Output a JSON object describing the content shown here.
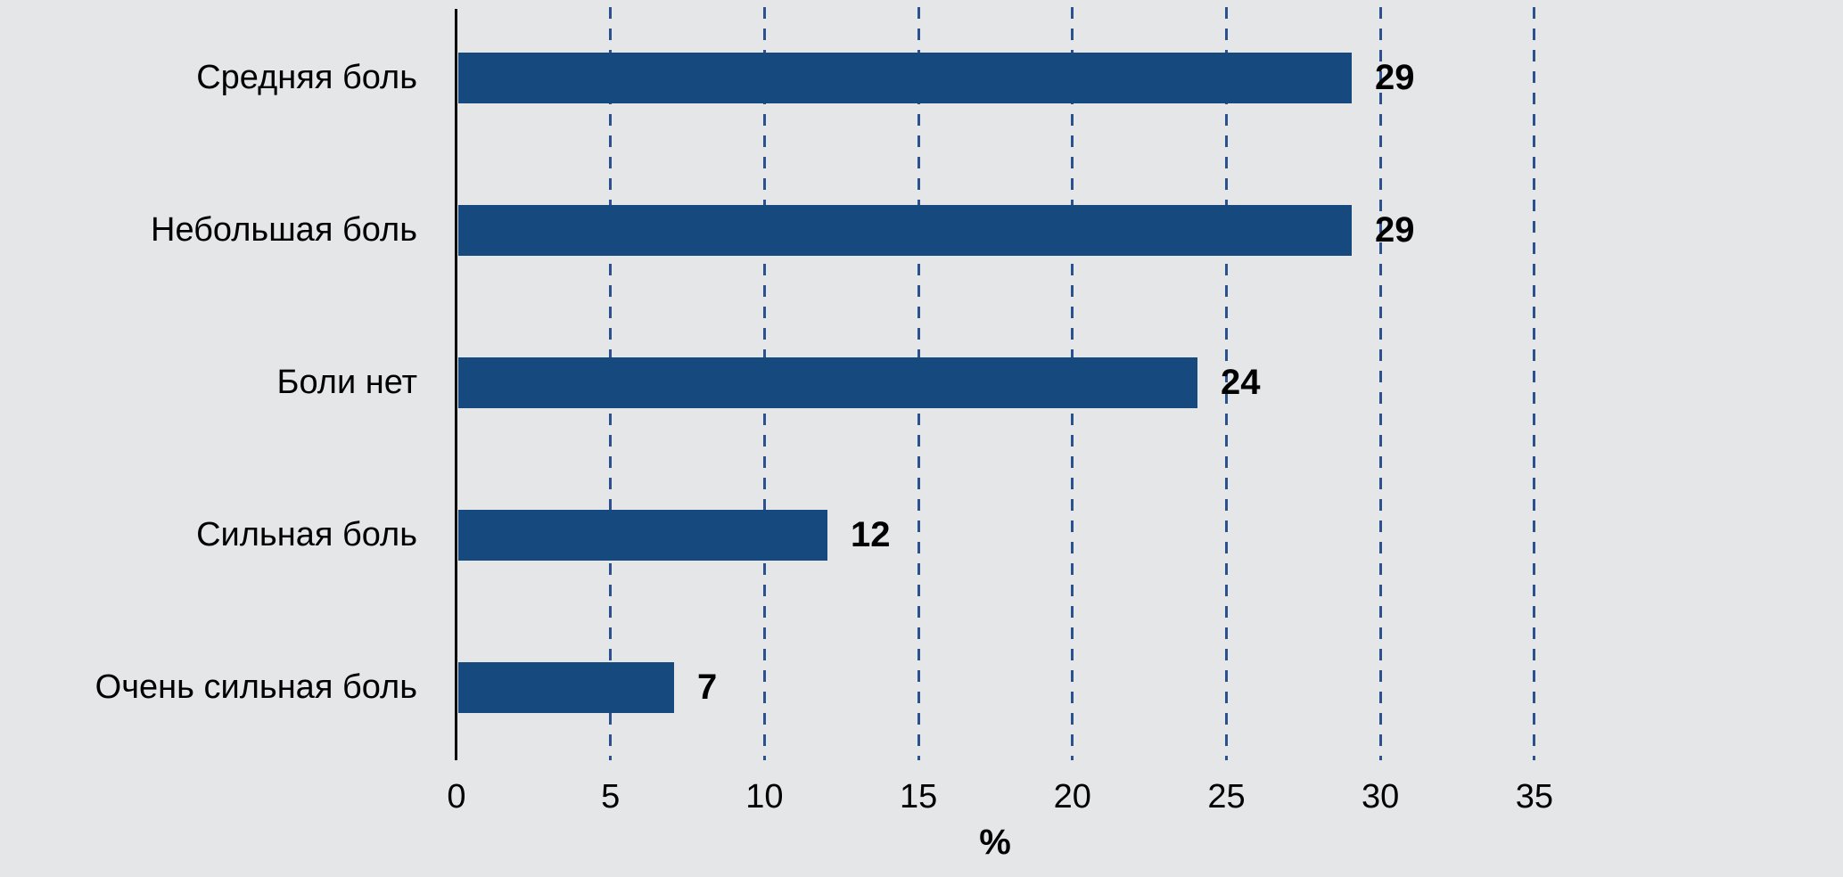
{
  "chart_data": {
    "type": "bar",
    "orientation": "horizontal",
    "title": "",
    "xlabel": "%",
    "ylabel": "",
    "categories": [
      "Средняя боль",
      "Небольшая боль",
      "Боли нет",
      "Сильная боль",
      "Очень сильная боль"
    ],
    "values": [
      29,
      29,
      24,
      12,
      7
    ],
    "value_labels": [
      "29",
      "29",
      "24",
      "12",
      "7"
    ],
    "xticks": [
      0,
      5,
      10,
      15,
      20,
      25,
      30,
      35
    ],
    "xlim": [
      0,
      35
    ],
    "grid": "vertical-dashed",
    "legend": "none",
    "colors": {
      "background": "#e5e6e8",
      "bar": "#164a7e",
      "gridline": "#2b5191",
      "axis": "#000000",
      "text": "#000000"
    }
  }
}
